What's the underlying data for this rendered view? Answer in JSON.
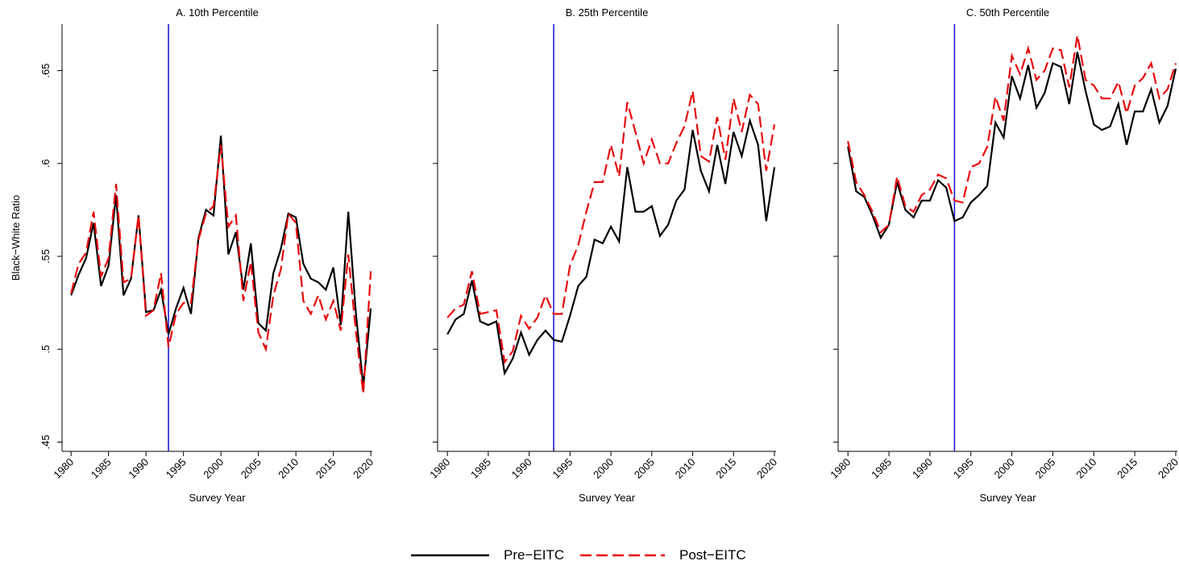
{
  "chart_data": [
    {
      "type": "line",
      "title": "A. 10th Percentile",
      "x_label": "Survey Year",
      "y_label": "Black−White Ratio",
      "x": [
        1980,
        1981,
        1982,
        1983,
        1984,
        1985,
        1986,
        1987,
        1988,
        1989,
        1990,
        1991,
        1992,
        1993,
        1994,
        1995,
        1996,
        1997,
        1998,
        1999,
        2000,
        2001,
        2002,
        2003,
        2004,
        2005,
        2006,
        2007,
        2008,
        2009,
        2010,
        2011,
        2012,
        2013,
        2014,
        2015,
        2016,
        2017,
        2018,
        2019,
        2020
      ],
      "series": [
        {
          "name": "Pre−EITC",
          "color": "#000000",
          "dash": false,
          "values": [
            0.529,
            0.54,
            0.549,
            0.568,
            0.534,
            0.545,
            0.583,
            0.529,
            0.538,
            0.572,
            0.52,
            0.521,
            0.532,
            0.508,
            0.522,
            0.533,
            0.519,
            0.56,
            0.575,
            0.572,
            0.615,
            0.551,
            0.563,
            0.532,
            0.557,
            0.514,
            0.51,
            0.541,
            0.554,
            0.573,
            0.571,
            0.546,
            0.538,
            0.536,
            0.532,
            0.544,
            0.513,
            0.574,
            0.52,
            0.48,
            0.522
          ]
        },
        {
          "name": "Post−EITC",
          "color": "#e8090c",
          "dash": true,
          "values": [
            0.53,
            0.546,
            0.552,
            0.574,
            0.539,
            0.549,
            0.589,
            0.536,
            0.538,
            0.572,
            0.518,
            0.521,
            0.541,
            0.501,
            0.519,
            0.525,
            0.525,
            0.559,
            0.573,
            0.577,
            0.61,
            0.566,
            0.572,
            0.526,
            0.547,
            0.509,
            0.5,
            0.529,
            0.543,
            0.573,
            0.568,
            0.526,
            0.519,
            0.529,
            0.516,
            0.526,
            0.51,
            0.551,
            0.51,
            0.476,
            0.542
          ]
        }
      ],
      "reference_line_x": 1993,
      "reference_line_color": "#1010d0",
      "xlim": [
        1978.8,
        2020.2
      ],
      "xticks": [
        1980,
        1985,
        1990,
        1995,
        2000,
        2005,
        2010,
        2015,
        2020
      ],
      "ylim": [
        0.445,
        0.675
      ],
      "yticks": [
        {
          "value": 0.45,
          "label": ".45"
        },
        {
          "value": 0.5,
          "label": ".5"
        },
        {
          "value": 0.55,
          "label": ".55"
        },
        {
          "value": 0.6,
          "label": ".6"
        },
        {
          "value": 0.65,
          "label": ".65"
        }
      ]
    },
    {
      "type": "line",
      "title": "B. 25th Percentile",
      "x_label": "Survey Year",
      "x": [
        1980,
        1981,
        1982,
        1983,
        1984,
        1985,
        1986,
        1987,
        1988,
        1989,
        1990,
        1991,
        1992,
        1993,
        1994,
        1995,
        1996,
        1997,
        1998,
        1999,
        2000,
        2001,
        2002,
        2003,
        2004,
        2005,
        2006,
        2007,
        2008,
        2009,
        2010,
        2011,
        2012,
        2013,
        2014,
        2015,
        2016,
        2017,
        2018,
        2019,
        2020
      ],
      "series": [
        {
          "name": "Pre−EITC",
          "color": "#000000",
          "dash": false,
          "values": [
            0.508,
            0.516,
            0.519,
            0.537,
            0.515,
            0.513,
            0.515,
            0.487,
            0.495,
            0.509,
            0.497,
            0.505,
            0.51,
            0.505,
            0.504,
            0.518,
            0.534,
            0.539,
            0.559,
            0.557,
            0.566,
            0.558,
            0.598,
            0.574,
            0.574,
            0.577,
            0.561,
            0.567,
            0.58,
            0.586,
            0.618,
            0.596,
            0.585,
            0.61,
            0.589,
            0.617,
            0.604,
            0.623,
            0.61,
            0.569,
            0.598
          ]
        },
        {
          "name": "Post−EITC",
          "color": "#e8090c",
          "dash": true,
          "values": [
            0.517,
            0.522,
            0.524,
            0.542,
            0.519,
            0.52,
            0.521,
            0.493,
            0.499,
            0.518,
            0.511,
            0.517,
            0.529,
            0.519,
            0.519,
            0.545,
            0.556,
            0.574,
            0.59,
            0.59,
            0.61,
            0.593,
            0.633,
            0.617,
            0.6,
            0.613,
            0.6,
            0.6,
            0.611,
            0.62,
            0.639,
            0.604,
            0.601,
            0.625,
            0.602,
            0.635,
            0.617,
            0.637,
            0.632,
            0.596,
            0.621
          ]
        }
      ],
      "reference_line_x": 1993,
      "reference_line_color": "#1010d0",
      "xlim": [
        1978.8,
        2020.2
      ],
      "xticks": [
        1980,
        1985,
        1990,
        1995,
        2000,
        2005,
        2010,
        2015,
        2020
      ],
      "ylim": [
        0.445,
        0.675
      ],
      "yticks": [
        0.45,
        0.5,
        0.55,
        0.6,
        0.65
      ]
    },
    {
      "type": "line",
      "title": "C. 50th Percentile",
      "x_label": "Survey Year",
      "x": [
        1980,
        1981,
        1982,
        1983,
        1984,
        1985,
        1986,
        1987,
        1988,
        1989,
        1990,
        1991,
        1992,
        1993,
        1994,
        1995,
        1996,
        1997,
        1998,
        1999,
        2000,
        2001,
        2002,
        2003,
        2004,
        2005,
        2006,
        2007,
        2008,
        2009,
        2010,
        2011,
        2012,
        2013,
        2014,
        2015,
        2016,
        2017,
        2018,
        2019,
        2020
      ],
      "series": [
        {
          "name": "Pre−EITC",
          "color": "#000000",
          "dash": false,
          "values": [
            0.609,
            0.585,
            0.582,
            0.572,
            0.56,
            0.567,
            0.59,
            0.575,
            0.571,
            0.58,
            0.58,
            0.591,
            0.587,
            0.569,
            0.571,
            0.579,
            0.583,
            0.588,
            0.622,
            0.614,
            0.647,
            0.635,
            0.653,
            0.63,
            0.638,
            0.654,
            0.652,
            0.632,
            0.66,
            0.639,
            0.621,
            0.618,
            0.62,
            0.632,
            0.61,
            0.628,
            0.628,
            0.64,
            0.622,
            0.631,
            0.651
          ]
        },
        {
          "name": "Post−EITC",
          "color": "#e8090c",
          "dash": true,
          "values": [
            0.612,
            0.59,
            0.583,
            0.574,
            0.563,
            0.567,
            0.593,
            0.577,
            0.574,
            0.583,
            0.586,
            0.594,
            0.592,
            0.58,
            0.579,
            0.598,
            0.6,
            0.609,
            0.636,
            0.623,
            0.658,
            0.648,
            0.662,
            0.645,
            0.65,
            0.662,
            0.661,
            0.641,
            0.669,
            0.645,
            0.642,
            0.635,
            0.635,
            0.644,
            0.627,
            0.642,
            0.646,
            0.654,
            0.635,
            0.64,
            0.654
          ]
        }
      ],
      "reference_line_x": 1993,
      "reference_line_color": "#1010d0",
      "xlim": [
        1978.8,
        2020.2
      ],
      "xticks": [
        1980,
        1985,
        1990,
        1995,
        2000,
        2005,
        2010,
        2015,
        2020
      ],
      "ylim": [
        0.445,
        0.675
      ],
      "yticks": [
        0.45,
        0.5,
        0.55,
        0.6,
        0.65
      ]
    }
  ]
}
